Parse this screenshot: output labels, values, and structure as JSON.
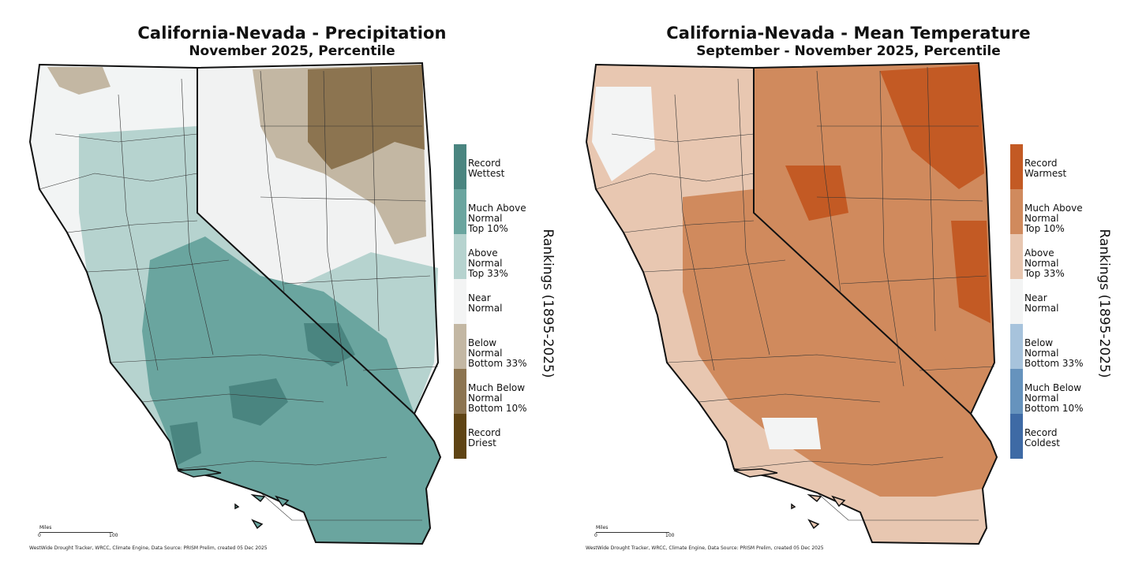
{
  "maps": [
    {
      "title": "California-Nevada - Precipitation",
      "subtitle": "November 2025, Percentile",
      "legend": [
        {
          "label": "Record\nWettest",
          "color": "#4a8580"
        },
        {
          "label": "Much Above\nNormal\nTop 10%",
          "color": "#6aa59f"
        },
        {
          "label": "Above\nNormal\nTop 33%",
          "color": "#b6d3cf"
        },
        {
          "label": "Near\nNormal",
          "color": "#f3f4f4"
        },
        {
          "label": "Below\nNormal\nBottom 33%",
          "color": "#c3b7a3"
        },
        {
          "label": "Much Below\nNormal\nBottom 10%",
          "color": "#8c7450"
        },
        {
          "label": "Record\nDriest",
          "color": "#5f4414"
        }
      ],
      "rank_label": "Rankings (1895-2025)",
      "scale": {
        "title": "Miles",
        "start": "0",
        "end": "100"
      },
      "source": "WestWide Drought Tracker, WRCC, Climate Engine, Data Source: PRISM Prelim, created 05 Dec 2025"
    },
    {
      "title": "California-Nevada - Mean Temperature",
      "subtitle": "September - November 2025, Percentile",
      "legend": [
        {
          "label": "Record\nWarmest",
          "color": "#c35a24"
        },
        {
          "label": "Much Above\nNormal\nTop 10%",
          "color": "#d08a5d"
        },
        {
          "label": "Above\nNormal\nTop 33%",
          "color": "#e8c7b1"
        },
        {
          "label": "Near\nNormal",
          "color": "#f3f4f4"
        },
        {
          "label": "Below\nNormal\nBottom 33%",
          "color": "#a7c3dc"
        },
        {
          "label": "Much Below\nNormal\nBottom 10%",
          "color": "#6693bd"
        },
        {
          "label": "Record\nColdest",
          "color": "#3e6aa5"
        }
      ],
      "rank_label": "Rankings (1895-2025)",
      "scale": {
        "title": "Miles",
        "start": "0",
        "end": "100"
      },
      "source": "WestWide Drought Tracker, WRCC, Climate Engine, Data Source: PRISM Prelim, created 05 Dec 2025"
    }
  ]
}
